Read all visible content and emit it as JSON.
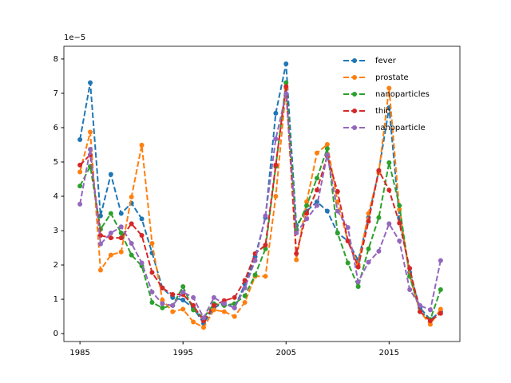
{
  "chart_data": {
    "type": "line",
    "y_offset_label": "1e−5",
    "x": [
      1985,
      1986,
      1987,
      1988,
      1989,
      1990,
      1991,
      1992,
      1993,
      1994,
      1995,
      1996,
      1997,
      1998,
      1999,
      2000,
      2001,
      2002,
      2003,
      2004,
      2005,
      2006,
      2007,
      2008,
      2009,
      2010,
      2011,
      2012,
      2013,
      2014,
      2015,
      2016,
      2017,
      2018,
      2019,
      2020
    ],
    "series": [
      {
        "name": "fever",
        "color": "#1f77b4",
        "values": [
          5.65,
          7.31,
          3.43,
          4.64,
          3.5,
          3.8,
          3.34,
          2.35,
          1.33,
          1.05,
          0.98,
          0.75,
          0.3,
          0.75,
          0.9,
          0.75,
          1.44,
          2.24,
          3.38,
          6.42,
          7.86,
          3.15,
          3.57,
          3.84,
          3.57,
          2.93,
          2.7,
          2.13,
          3.38,
          4.75,
          6.58,
          3.38,
          1.78,
          0.75,
          0.41,
          0.64
        ]
      },
      {
        "name": "prostate",
        "color": "#ff7f0e",
        "values": [
          4.71,
          5.87,
          1.85,
          2.29,
          2.38,
          3.98,
          5.49,
          2.63,
          0.98,
          0.64,
          0.71,
          0.34,
          0.18,
          0.69,
          0.64,
          0.5,
          0.91,
          1.67,
          1.67,
          4.0,
          7.15,
          2.15,
          3.84,
          5.26,
          5.51,
          3.84,
          2.7,
          2.01,
          3.5,
          4.69,
          7.15,
          3.61,
          1.67,
          0.64,
          0.27,
          0.71
        ]
      },
      {
        "name": "nanoparticles",
        "color": "#2ca02c",
        "values": [
          4.3,
          4.87,
          3.04,
          3.5,
          2.93,
          2.29,
          1.97,
          0.91,
          0.75,
          0.82,
          1.37,
          0.69,
          0.46,
          0.87,
          0.82,
          0.87,
          1.1,
          1.71,
          2.47,
          4.87,
          7.31,
          3.04,
          3.73,
          4.53,
          5.39,
          2.93,
          2.06,
          1.37,
          2.47,
          3.38,
          4.98,
          3.73,
          1.67,
          0.64,
          0.41,
          1.28
        ]
      },
      {
        "name": "thin",
        "color": "#d62728",
        "values": [
          4.91,
          5.21,
          2.86,
          2.79,
          2.79,
          3.2,
          2.86,
          1.78,
          1.33,
          1.14,
          1.14,
          0.82,
          0.37,
          0.82,
          0.96,
          1.05,
          1.55,
          2.33,
          2.58,
          4.91,
          7.2,
          2.33,
          3.5,
          4.18,
          5.17,
          4.14,
          2.7,
          1.94,
          3.27,
          4.75,
          4.18,
          3.22,
          1.9,
          0.64,
          0.37,
          0.59
        ]
      },
      {
        "name": "nanoparticle",
        "color": "#9467bd",
        "values": [
          3.77,
          5.37,
          2.61,
          2.93,
          3.11,
          2.63,
          2.06,
          1.21,
          0.87,
          0.82,
          1.21,
          1.05,
          0.46,
          1.05,
          0.87,
          0.75,
          1.33,
          2.13,
          3.43,
          5.67,
          6.99,
          2.93,
          3.34,
          3.73,
          5.21,
          3.57,
          3.09,
          1.51,
          2.08,
          2.4,
          3.2,
          2.7,
          1.28,
          0.82,
          0.69,
          2.13
        ]
      }
    ],
    "xlim": [
      1983.44,
      2021.87
    ],
    "xticks": [
      1985,
      1995,
      2005,
      2015
    ],
    "ylim": [
      -0.23,
      8.37
    ],
    "yticks": [
      0,
      1,
      2,
      3,
      4,
      5,
      6,
      7,
      8
    ],
    "line_style": "dashed",
    "marker": "circle",
    "grid": false,
    "legend": "upper right"
  }
}
